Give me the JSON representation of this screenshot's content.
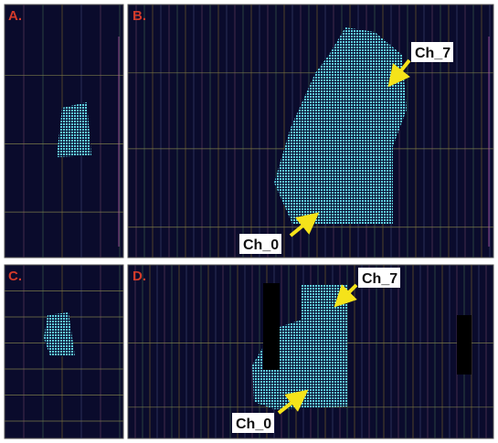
{
  "panels": [
    {
      "label": "A."
    },
    {
      "label": "B.",
      "annotations": [
        "Ch_7",
        "Ch_0"
      ]
    },
    {
      "label": "C."
    },
    {
      "label": "D.",
      "annotations": [
        "Ch_7",
        "Ch_0"
      ]
    }
  ]
}
